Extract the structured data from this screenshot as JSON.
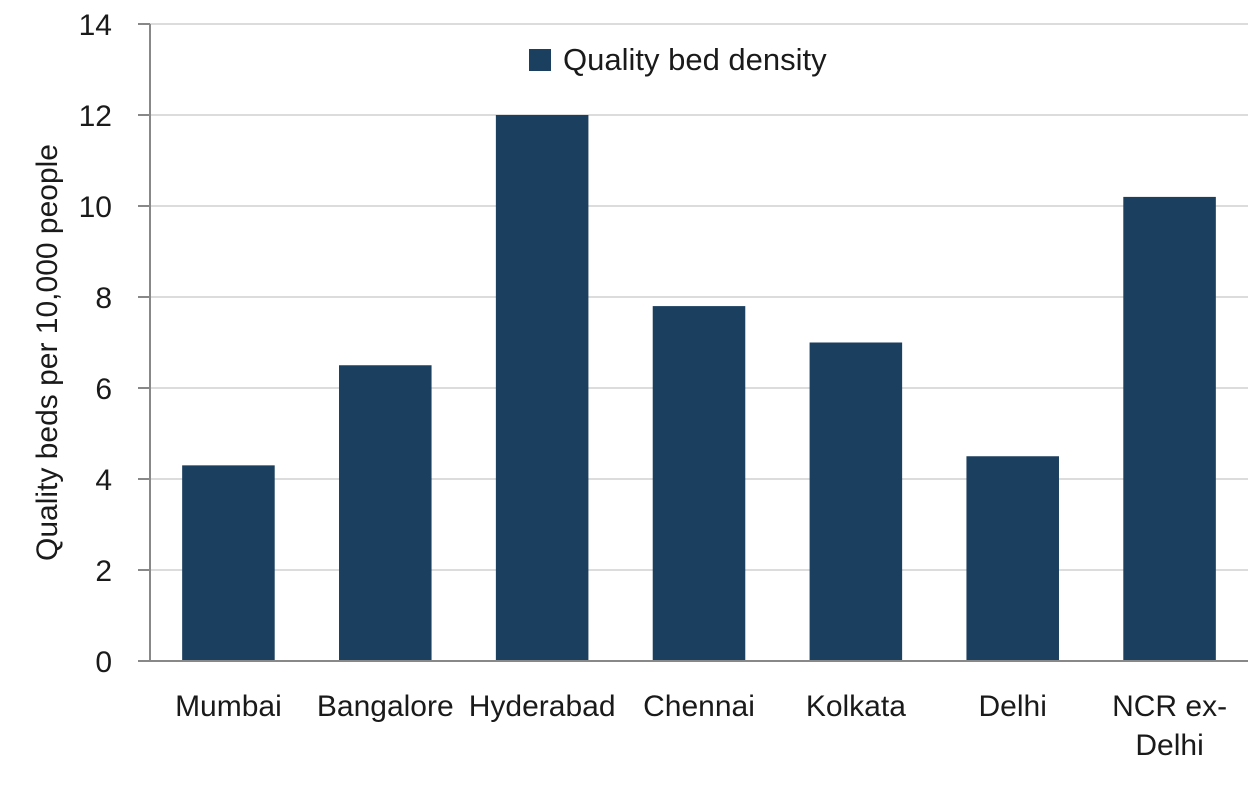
{
  "chart_data": {
    "type": "bar",
    "categories": [
      "Mumbai",
      "Bangalore",
      "Hyderabad",
      "Chennai",
      "Kolkata",
      "Delhi",
      "NCR ex-Delhi"
    ],
    "category_lines": [
      [
        "Mumbai"
      ],
      [
        "Bangalore"
      ],
      [
        "Hyderabad"
      ],
      [
        "Chennai"
      ],
      [
        "Kolkata"
      ],
      [
        "Delhi"
      ],
      [
        "NCR ex-",
        "Delhi"
      ]
    ],
    "series": [
      {
        "name": "Quality bed density",
        "values": [
          4.3,
          6.5,
          12.0,
          7.8,
          7.0,
          4.5,
          10.2
        ],
        "color": "#1b3f5e"
      }
    ],
    "title": "",
    "xlabel": "",
    "ylabel": "Quality beds per 10,000 people",
    "ylim": [
      0,
      14
    ],
    "yticks": [
      0,
      2,
      4,
      6,
      8,
      10,
      12,
      14
    ],
    "grid": true,
    "legend_position": "top-center"
  }
}
